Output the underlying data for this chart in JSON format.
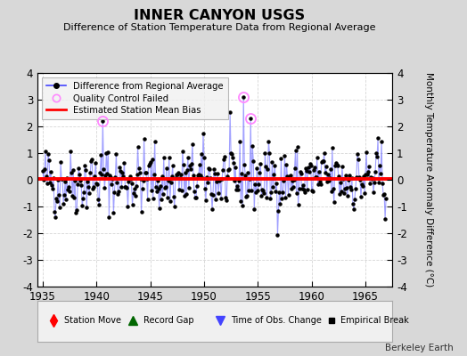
{
  "title": "INNER CANYON USGS",
  "subtitle": "Difference of Station Temperature Data from Regional Average",
  "ylabel": "Monthly Temperature Anomaly Difference (°C)",
  "xlabel_years": [
    1935,
    1940,
    1945,
    1950,
    1955,
    1960,
    1965
  ],
  "xmin": 1934.5,
  "xmax": 1967.5,
  "ymin": -4,
  "ymax": 4,
  "yticks": [
    -4,
    -3,
    -2,
    -1,
    0,
    1,
    2,
    3,
    4
  ],
  "bias_value": 0.05,
  "line_color": "#4444ff",
  "line_alpha": 0.5,
  "marker_color": "#000000",
  "bias_color": "#ff0000",
  "qc_color": "#ff88ff",
  "bg_color": "#d8d8d8",
  "plot_bg_color": "#ffffff",
  "grid_color": "#cccccc",
  "watermark": "Berkeley Earth",
  "legend1_items": [
    "Difference from Regional Average",
    "Quality Control Failed",
    "Estimated Station Mean Bias"
  ],
  "legend2_items": [
    "Station Move",
    "Record Gap",
    "Time of Obs. Change",
    "Empirical Break"
  ],
  "seed": 42
}
